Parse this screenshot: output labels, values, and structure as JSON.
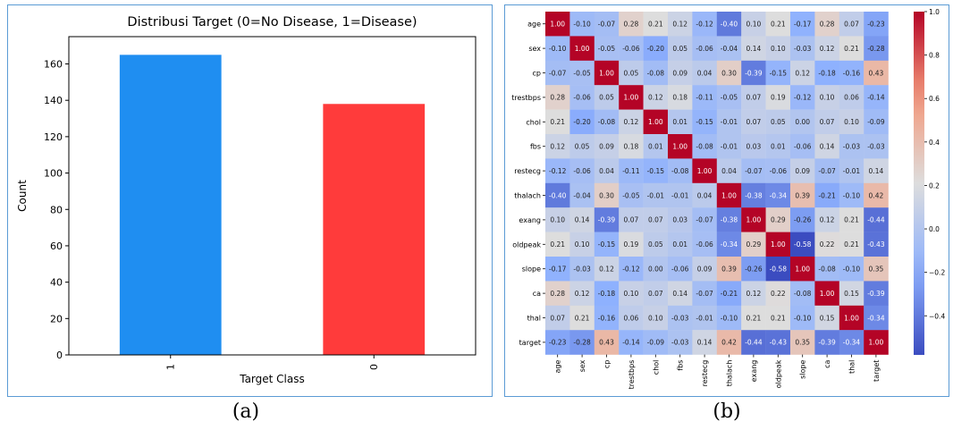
{
  "chart_data": [
    {
      "type": "bar",
      "title": "Distribusi Target (0=No Disease, 1=Disease)",
      "xlabel": "Target Class",
      "ylabel": "Count",
      "categories": [
        "1",
        "0"
      ],
      "values": [
        165,
        138
      ],
      "colors": [
        "#1f8ef1",
        "#ff3b3b"
      ],
      "ylim": [
        0,
        175
      ],
      "yticks": [
        0,
        20,
        40,
        60,
        80,
        100,
        120,
        140,
        160
      ],
      "grid": false
    },
    {
      "type": "heatmap",
      "title": "",
      "labels": [
        "age",
        "sex",
        "cp",
        "trestbps",
        "chol",
        "fbs",
        "restecg",
        "thalach",
        "exang",
        "oldpeak",
        "slope",
        "ca",
        "thal",
        "target"
      ],
      "matrix": [
        [
          1.0,
          -0.1,
          -0.07,
          0.28,
          0.21,
          0.12,
          -0.12,
          -0.4,
          0.1,
          0.21,
          -0.17,
          0.28,
          0.07,
          -0.23
        ],
        [
          -0.1,
          1.0,
          -0.05,
          -0.06,
          -0.2,
          0.05,
          -0.06,
          -0.04,
          0.14,
          0.1,
          -0.03,
          0.12,
          0.21,
          -0.28
        ],
        [
          -0.07,
          -0.05,
          1.0,
          0.05,
          -0.08,
          0.09,
          0.04,
          0.3,
          -0.39,
          -0.15,
          0.12,
          -0.18,
          -0.16,
          0.43
        ],
        [
          0.28,
          -0.06,
          0.05,
          1.0,
          0.12,
          0.18,
          -0.11,
          -0.05,
          0.07,
          0.19,
          -0.12,
          0.1,
          0.06,
          -0.14
        ],
        [
          0.21,
          -0.2,
          -0.08,
          0.12,
          1.0,
          0.01,
          -0.15,
          -0.01,
          0.07,
          0.05,
          -0.0,
          0.07,
          0.1,
          -0.09
        ],
        [
          0.12,
          0.05,
          0.09,
          0.18,
          0.01,
          1.0,
          -0.08,
          -0.01,
          0.03,
          0.01,
          -0.06,
          0.14,
          -0.03,
          -0.03
        ],
        [
          -0.12,
          -0.06,
          0.04,
          -0.11,
          -0.15,
          -0.08,
          1.0,
          0.04,
          -0.07,
          -0.06,
          0.09,
          -0.07,
          -0.01,
          0.14
        ],
        [
          -0.4,
          -0.04,
          0.3,
          -0.05,
          -0.01,
          -0.01,
          0.04,
          1.0,
          -0.38,
          -0.34,
          0.39,
          -0.21,
          -0.1,
          0.42
        ],
        [
          0.1,
          0.14,
          -0.39,
          0.07,
          0.07,
          0.03,
          -0.07,
          -0.38,
          1.0,
          0.29,
          -0.26,
          0.12,
          0.21,
          -0.44
        ],
        [
          0.21,
          0.1,
          -0.15,
          0.19,
          0.05,
          0.01,
          -0.06,
          -0.34,
          0.29,
          1.0,
          -0.58,
          0.22,
          0.21,
          -0.43
        ],
        [
          -0.17,
          -0.03,
          0.12,
          -0.12,
          -0.0,
          -0.06,
          0.09,
          0.39,
          -0.26,
          -0.58,
          1.0,
          -0.08,
          -0.1,
          0.35
        ],
        [
          0.28,
          0.12,
          -0.18,
          0.1,
          0.07,
          0.14,
          -0.07,
          -0.21,
          0.12,
          0.22,
          -0.08,
          1.0,
          0.15,
          -0.39
        ],
        [
          0.07,
          0.21,
          -0.16,
          0.06,
          0.1,
          -0.03,
          -0.01,
          -0.1,
          0.21,
          0.21,
          -0.1,
          0.15,
          1.0,
          -0.34
        ],
        [
          -0.23,
          -0.28,
          0.43,
          -0.14,
          -0.09,
          -0.03,
          0.14,
          0.42,
          -0.44,
          -0.43,
          0.35,
          -0.39,
          -0.34,
          1.0
        ]
      ],
      "colormap": "coolwarm",
      "vmin": -0.58,
      "vmax": 1.0,
      "colorbar_ticks": [
        "1.0",
        "0.8",
        "0.6",
        "0.4",
        "0.2",
        "0.0",
        "−0.2",
        "−0.4"
      ]
    }
  ],
  "captions": [
    "(a)",
    "(b)"
  ]
}
